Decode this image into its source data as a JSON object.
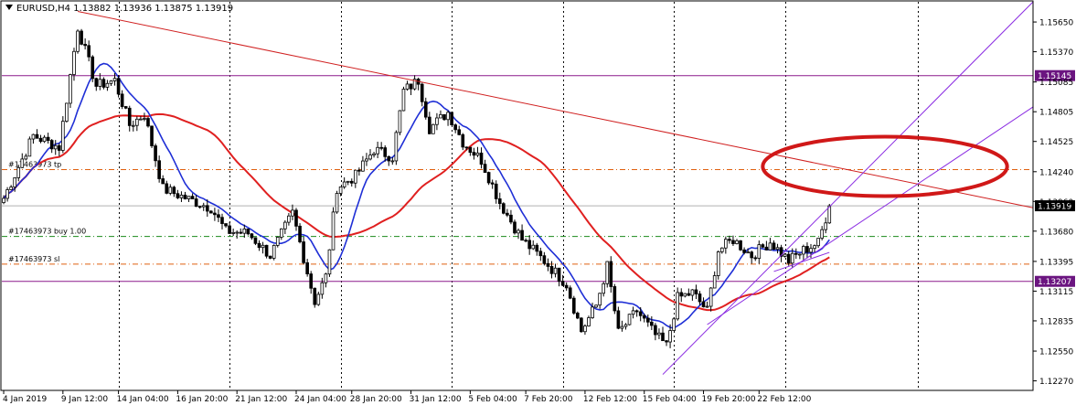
{
  "chart_data": {
    "type": "candlestick",
    "header": {
      "symbol": "EURUSD,H4",
      "ohlc": "1.13882 1.13936 1.13875 1.13919"
    },
    "colors": {
      "background": "#ffffff",
      "candle": "#000000",
      "ma_fast": "#1f2fd6",
      "ma_slow": "#e02020",
      "trend_down": "#d02020",
      "channel": "#8a2be2",
      "hline": "#8b1a8b",
      "level_tp": "#e06010",
      "level_buy": "#1a8a1a",
      "level_sl": "#e06010",
      "ellipse": "#d01818",
      "price_tag_bg": "#000000",
      "price_tag_hline_bg": "#6b1580"
    },
    "y_axis": {
      "range": [
        1.1218,
        1.1584
      ],
      "ticks": [
        "1.15650",
        "1.15370",
        "1.15085",
        "1.14805",
        "1.14525",
        "1.14240",
        "1.13960",
        "1.13680",
        "1.13395",
        "1.13115",
        "1.12835",
        "1.12550",
        "1.12270"
      ]
    },
    "x_axis": {
      "labels": [
        "4 Jan 2019",
        "9 Jan 12:00",
        "14 Jan 04:00",
        "16 Jan 20:00",
        "21 Jan 12:00",
        "24 Jan 04:00",
        "28 Jan 20:00",
        "31 Jan 12:00",
        "5 Feb 04:00",
        "7 Feb 20:00",
        "12 Feb 12:00",
        "15 Feb 04:00",
        "19 Feb 20:00",
        "22 Feb 12:00"
      ],
      "label_bar_index": [
        0,
        16,
        31,
        47,
        63,
        79,
        94,
        110,
        126,
        141,
        157,
        173,
        189,
        204
      ],
      "grid_bar_index": [
        31,
        61,
        91,
        121,
        151,
        181,
        211,
        247
      ],
      "bars_visible": 278
    },
    "current_price": "1.13919",
    "horizontal_lines": [
      {
        "price": 1.15145,
        "label": "1.15145"
      },
      {
        "price": 1.13207,
        "label": "1.13207"
      }
    ],
    "trade_levels": [
      {
        "price": 1.1426,
        "label": "#17463973 tp",
        "kind": "tp"
      },
      {
        "price": 1.1363,
        "label": "#17463973 buy 1.00",
        "kind": "buy"
      },
      {
        "price": 1.1337,
        "label": "#17463973 sl",
        "kind": "sl"
      }
    ],
    "trendlines": [
      {
        "kind": "down",
        "from": {
          "bar": 20,
          "price": 1.1575
        },
        "to": {
          "bar": 278,
          "price": 1.139
        }
      },
      {
        "kind": "channel",
        "from": {
          "bar": 178,
          "price": 1.1233
        },
        "to": {
          "bar": 278,
          "price": 1.1584
        }
      },
      {
        "kind": "channel",
        "from": {
          "bar": 190,
          "price": 1.128
        },
        "to": {
          "bar": 278,
          "price": 1.1485
        }
      },
      {
        "kind": "channel",
        "from": {
          "bar": 208,
          "price": 1.133
        },
        "to": {
          "bar": 223,
          "price": 1.1348
        }
      }
    ],
    "highlight_ellipse": {
      "center_bar": 238,
      "center_price": 1.1429,
      "radius_bars": 33,
      "radius_price": 0.0028
    },
    "anchors": [
      {
        "bar": 0,
        "price": 1.1399
      },
      {
        "bar": 8,
        "price": 1.1458
      },
      {
        "bar": 15,
        "price": 1.1447
      },
      {
        "bar": 20,
        "price": 1.156
      },
      {
        "bar": 25,
        "price": 1.1505
      },
      {
        "bar": 30,
        "price": 1.151
      },
      {
        "bar": 34,
        "price": 1.1468
      },
      {
        "bar": 38,
        "price": 1.1478
      },
      {
        "bar": 43,
        "price": 1.1408
      },
      {
        "bar": 50,
        "price": 1.1398
      },
      {
        "bar": 56,
        "price": 1.139
      },
      {
        "bar": 60,
        "price": 1.1368
      },
      {
        "bar": 66,
        "price": 1.1366
      },
      {
        "bar": 72,
        "price": 1.1345
      },
      {
        "bar": 78,
        "price": 1.1385
      },
      {
        "bar": 84,
        "price": 1.1302
      },
      {
        "bar": 87,
        "price": 1.1325
      },
      {
        "bar": 90,
        "price": 1.1409
      },
      {
        "bar": 95,
        "price": 1.142
      },
      {
        "bar": 100,
        "price": 1.1445
      },
      {
        "bar": 105,
        "price": 1.1438
      },
      {
        "bar": 108,
        "price": 1.15
      },
      {
        "bar": 112,
        "price": 1.151
      },
      {
        "bar": 115,
        "price": 1.1465
      },
      {
        "bar": 120,
        "price": 1.148
      },
      {
        "bar": 124,
        "price": 1.1452
      },
      {
        "bar": 129,
        "price": 1.1435
      },
      {
        "bar": 134,
        "price": 1.1395
      },
      {
        "bar": 140,
        "price": 1.136
      },
      {
        "bar": 146,
        "price": 1.134
      },
      {
        "bar": 152,
        "price": 1.1318
      },
      {
        "bar": 156,
        "price": 1.1274
      },
      {
        "bar": 160,
        "price": 1.1298
      },
      {
        "bar": 163,
        "price": 1.1335
      },
      {
        "bar": 166,
        "price": 1.1272
      },
      {
        "bar": 171,
        "price": 1.1293
      },
      {
        "bar": 176,
        "price": 1.127
      },
      {
        "bar": 179,
        "price": 1.126
      },
      {
        "bar": 182,
        "price": 1.1305
      },
      {
        "bar": 186,
        "price": 1.131
      },
      {
        "bar": 190,
        "price": 1.1293
      },
      {
        "bar": 193,
        "price": 1.135
      },
      {
        "bar": 197,
        "price": 1.136
      },
      {
        "bar": 202,
        "price": 1.1345
      },
      {
        "bar": 207,
        "price": 1.1358
      },
      {
        "bar": 212,
        "price": 1.134
      },
      {
        "bar": 216,
        "price": 1.135
      },
      {
        "bar": 220,
        "price": 1.1357
      },
      {
        "bar": 223,
        "price": 1.1392
      }
    ]
  }
}
